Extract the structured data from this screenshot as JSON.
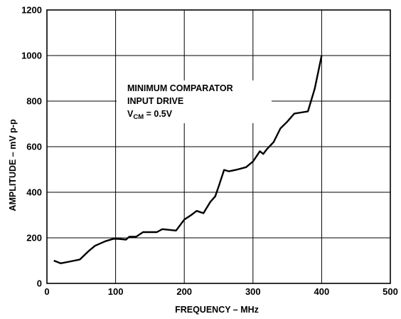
{
  "chart_data": {
    "type": "line",
    "xlabel": "FREQUENCY – MHz",
    "ylabel": "AMPLITUDE – mV p-p",
    "xlim": [
      0,
      500
    ],
    "ylim": [
      0,
      1200
    ],
    "x_ticks": [
      "0",
      "100",
      "200",
      "300",
      "400",
      "500"
    ],
    "y_ticks": [
      "0",
      "200",
      "400",
      "600",
      "800",
      "1000",
      "1200"
    ],
    "grid": true,
    "annotation": {
      "line1": "MINIMUM COMPARATOR",
      "line2": "INPUT DRIVE",
      "line3_main": "V",
      "line3_sub": "CM",
      "line3_rest": " = 0.5V"
    },
    "series": [
      {
        "x": [
          10,
          20,
          35,
          48,
          60,
          70,
          85,
          97,
          105,
          115,
          120,
          130,
          140,
          150,
          160,
          168,
          178,
          188,
          200,
          210,
          218,
          228,
          238,
          245,
          250,
          258,
          265,
          275,
          290,
          300,
          310,
          315,
          320,
          330,
          340,
          350,
          360,
          370,
          380,
          390,
          400
        ],
        "y": [
          100,
          88,
          97,
          105,
          140,
          165,
          185,
          196,
          195,
          192,
          205,
          205,
          225,
          225,
          225,
          238,
          235,
          232,
          280,
          300,
          318,
          308,
          358,
          382,
          425,
          498,
          492,
          498,
          510,
          535,
          580,
          568,
          588,
          620,
          680,
          710,
          745,
          750,
          755,
          855,
          1000
        ]
      }
    ]
  }
}
